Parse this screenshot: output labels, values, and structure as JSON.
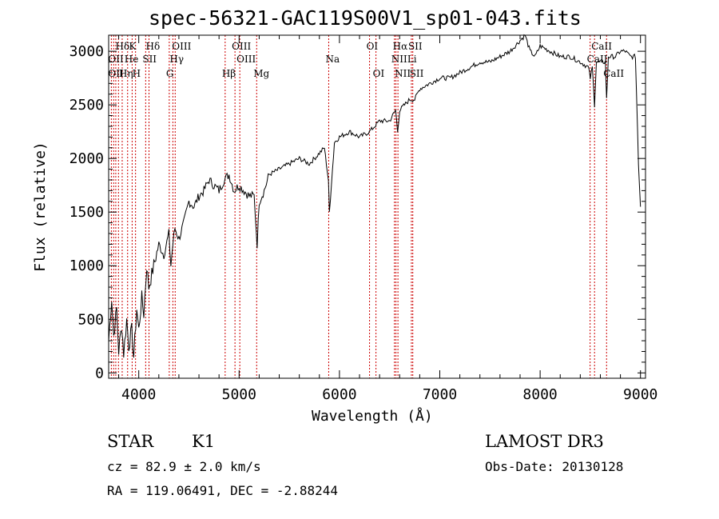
{
  "chart_data": {
    "type": "line",
    "title": "spec-56321-GAC119S00V1_sp01-043.fits",
    "xlabel": "Wavelength (Å)",
    "ylabel": "Flux (relative)",
    "xlim": [
      3700,
      9050
    ],
    "ylim": [
      -50,
      3150
    ],
    "xticks": [
      4000,
      5000,
      6000,
      7000,
      8000,
      9000
    ],
    "yticks": [
      0,
      500,
      1000,
      1500,
      2000,
      2500,
      3000
    ],
    "series": [
      {
        "name": "flux",
        "x": [
          3700,
          3730,
          3750,
          3780,
          3800,
          3830,
          3850,
          3880,
          3900,
          3930,
          3950,
          3980,
          4000,
          4030,
          4050,
          4080,
          4100,
          4150,
          4200,
          4250,
          4300,
          4320,
          4340,
          4360,
          4400,
          4450,
          4500,
          4550,
          4600,
          4650,
          4700,
          4750,
          4800,
          4850,
          4900,
          4950,
          5000,
          5050,
          5100,
          5150,
          5180,
          5200,
          5250,
          5300,
          5400,
          5500,
          5600,
          5700,
          5800,
          5850,
          5890,
          5900,
          5950,
          6000,
          6100,
          6200,
          6300,
          6400,
          6500,
          6560,
          6580,
          6600,
          6650,
          6700,
          6750,
          6800,
          6900,
          7000,
          7100,
          7200,
          7300,
          7400,
          7500,
          7600,
          7700,
          7800,
          7850,
          7900,
          7950,
          8000,
          8100,
          8200,
          8300,
          8400,
          8480,
          8500,
          8520,
          8542,
          8560,
          8600,
          8650,
          8662,
          8680,
          8700,
          8750,
          8800,
          8850,
          8900,
          8950,
          8980,
          9000
        ],
        "y": [
          300,
          700,
          350,
          600,
          200,
          450,
          180,
          500,
          250,
          400,
          150,
          600,
          400,
          700,
          550,
          1000,
          800,
          1000,
          1200,
          1100,
          1300,
          1000,
          1200,
          1350,
          1250,
          1400,
          1600,
          1550,
          1650,
          1700,
          1800,
          1750,
          1700,
          1800,
          1850,
          1700,
          1750,
          1700,
          1650,
          1650,
          1200,
          1600,
          1700,
          1850,
          1900,
          1950,
          2000,
          1950,
          2050,
          2100,
          1800,
          1500,
          2150,
          2200,
          2250,
          2200,
          2250,
          2350,
          2350,
          2450,
          2250,
          2450,
          2500,
          2550,
          2550,
          2650,
          2700,
          2750,
          2750,
          2800,
          2850,
          2900,
          2900,
          2950,
          3000,
          3100,
          3150,
          3000,
          2950,
          3050,
          3000,
          2950,
          2950,
          2900,
          2850,
          2750,
          2850,
          2500,
          2900,
          2900,
          2900,
          2550,
          2950,
          2950,
          2950,
          3000,
          3000,
          2950,
          2950,
          1950,
          1550
        ]
      }
    ],
    "lines_top": [
      {
        "label": "Hδ",
        "wavelength": 3800
      },
      {
        "label": "K",
        "wavelength": 3934
      },
      {
        "label": "Hδ",
        "wavelength": 4102
      },
      {
        "label": "OIII",
        "wavelength": 4363
      },
      {
        "label": "OIII",
        "wavelength": 4959
      },
      {
        "label": "OI",
        "wavelength": 6300
      },
      {
        "label": "Hα",
        "wavelength": 6563
      },
      {
        "label": "SII",
        "wavelength": 6717
      },
      {
        "label": "CaII",
        "wavelength": 8542
      }
    ],
    "lines_mid": [
      {
        "label": "OII",
        "wavelength": 3727
      },
      {
        "label": "He",
        "wavelength": 3889
      },
      {
        "label": "SII",
        "wavelength": 4069
      },
      {
        "label": "Hγ",
        "wavelength": 4340
      },
      {
        "label": "OIII",
        "wavelength": 5007
      },
      {
        "label": "Na",
        "wavelength": 5893
      },
      {
        "label": "NII",
        "wavelength": 6548
      },
      {
        "label": "Li",
        "wavelength": 6708
      },
      {
        "label": "CaII",
        "wavelength": 8498
      }
    ],
    "lines_low": [
      {
        "label": "OII",
        "wavelength": 3727
      },
      {
        "label": "Hη",
        "wavelength": 3835
      },
      {
        "label": "H",
        "wavelength": 3968
      },
      {
        "label": "G",
        "wavelength": 4304
      },
      {
        "label": "Hβ",
        "wavelength": 4861
      },
      {
        "label": "Mg",
        "wavelength": 5175
      },
      {
        "label": "OI",
        "wavelength": 6364
      },
      {
        "label": "NII",
        "wavelength": 6583
      },
      {
        "label": "SII",
        "wavelength": 6731
      },
      {
        "label": "CaII",
        "wavelength": 8662
      }
    ],
    "line_markers": [
      3727,
      3750,
      3771,
      3798,
      3835,
      3889,
      3934,
      3968,
      4069,
      4102,
      4304,
      4340,
      4363,
      4861,
      4959,
      5007,
      5175,
      5893,
      6300,
      6364,
      6548,
      6563,
      6583,
      6717,
      6731,
      8498,
      8542,
      8662
    ]
  },
  "info": {
    "object_class": "STAR",
    "subclass": "K1",
    "survey": "LAMOST DR3",
    "cz": "cz = 82.9 ± 2.0 km/s",
    "obs_date": "Obs-Date: 20130128",
    "coords": "RA = 119.06491, DEC =  -2.88244"
  }
}
